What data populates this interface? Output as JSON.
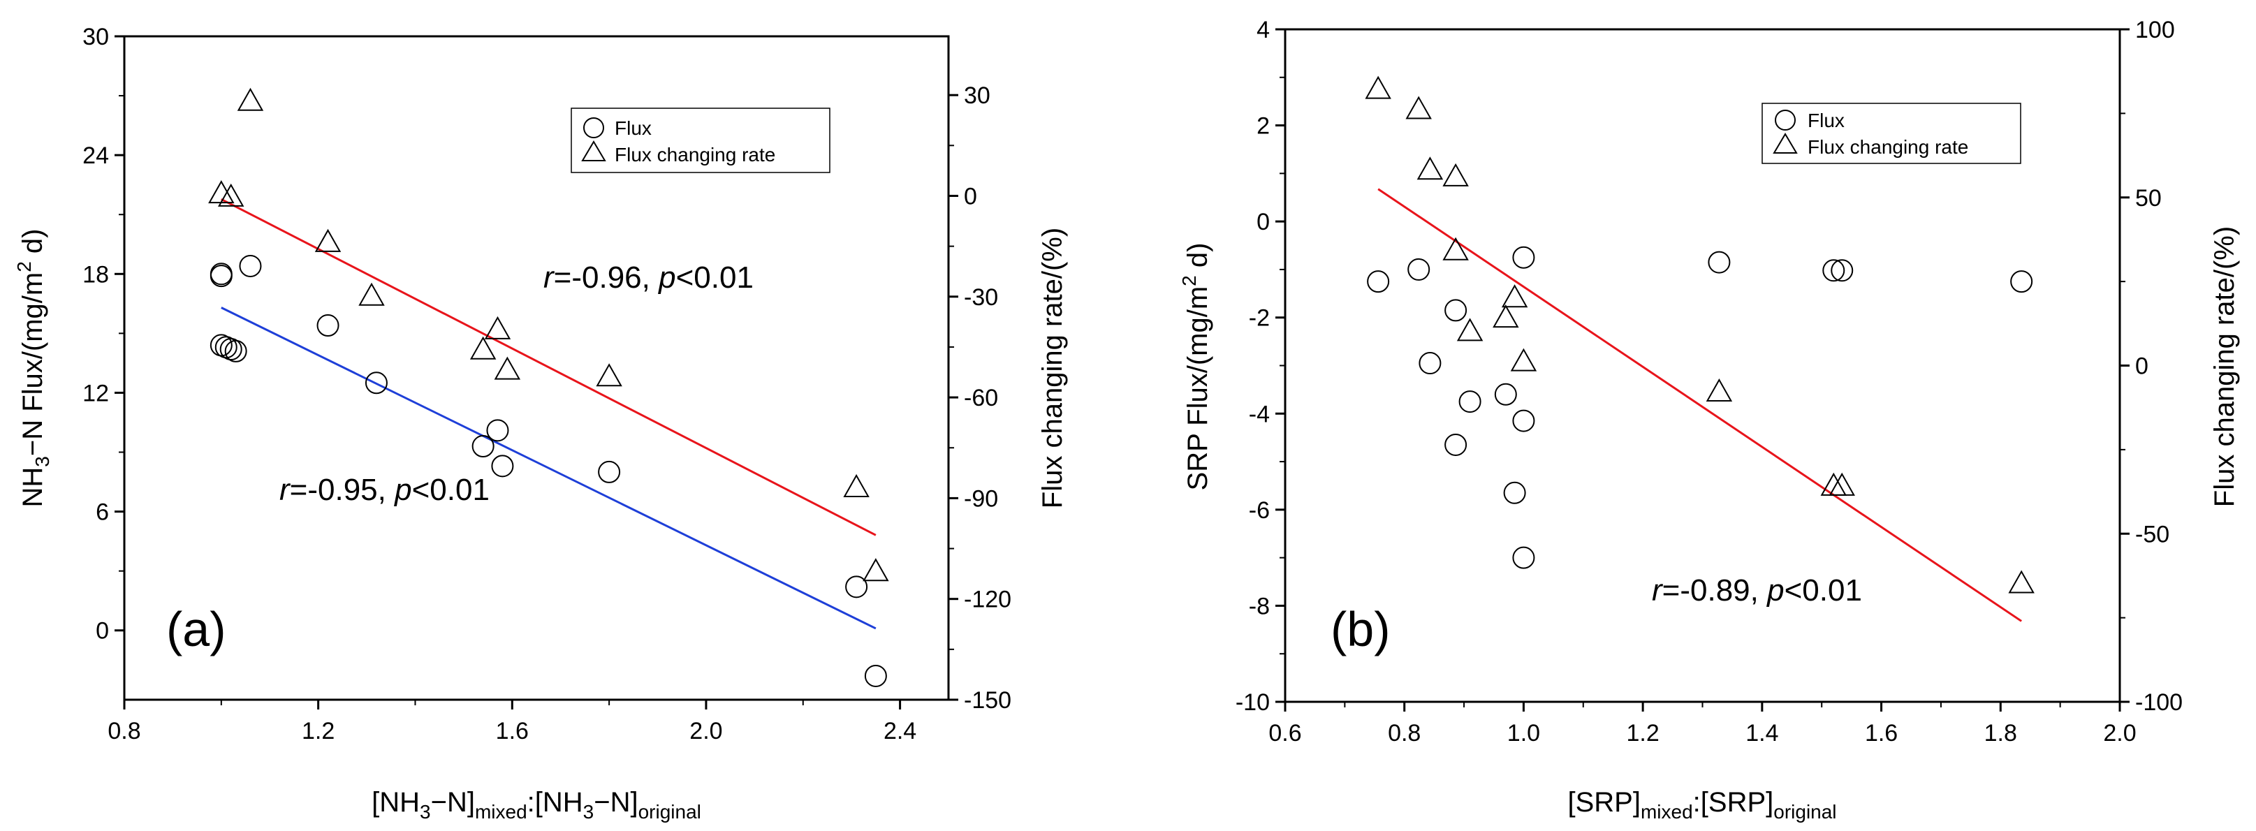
{
  "chart_data": [
    {
      "panel": "a",
      "type": "scatter",
      "panel_label": "(a)",
      "xlabel": {
        "pre": "[NH",
        "s1": "3",
        "mid1": "−N]",
        "s2": "mixed",
        "mid2": ":[NH",
        "s3": "3",
        "mid3": "−N]",
        "s4": "original"
      },
      "ylabel_left": {
        "pre": "NH",
        "s1": "3",
        "mid": "−N Flux/(mg/m",
        "s2": "2",
        "post": " d)"
      },
      "ylabel_right": "Flux changing rate/(%)",
      "xlim": [
        0.8,
        2.5
      ],
      "ylim_left": [
        -3.5,
        30
      ],
      "ylim_right": [
        -150,
        47.5
      ],
      "x_ticks": [
        0.8,
        1.2,
        1.6,
        2.0,
        2.4
      ],
      "x_tick_labels": [
        "0.8",
        "1.2",
        "1.6",
        "2.0",
        "2.4"
      ],
      "y_left_ticks": [
        0,
        6,
        12,
        18,
        24,
        30
      ],
      "y_left_tick_labels": [
        "0",
        "6",
        "12",
        "18",
        "24",
        "30"
      ],
      "y_right_ticks": [
        -150,
        -120,
        -90,
        -60,
        -30,
        0,
        30
      ],
      "y_right_tick_labels": [
        "-150",
        "-120",
        "-90",
        "-60",
        "-30",
        "0",
        "30"
      ],
      "legend": {
        "position": "top-right",
        "items": [
          "Flux",
          "Flux changing rate"
        ]
      },
      "series": [
        {
          "name": "Flux",
          "axis": "left",
          "marker": "circle",
          "points": [
            [
              1.0,
              18.0
            ],
            [
              1.0,
              17.9
            ],
            [
              1.0,
              14.4
            ],
            [
              1.01,
              14.3
            ],
            [
              1.02,
              14.2
            ],
            [
              1.03,
              14.1
            ],
            [
              1.06,
              18.4
            ],
            [
              1.22,
              15.4
            ],
            [
              1.32,
              12.5
            ],
            [
              1.54,
              9.3
            ],
            [
              1.57,
              10.1
            ],
            [
              1.58,
              8.3
            ],
            [
              1.8,
              8.0
            ],
            [
              2.31,
              2.2
            ],
            [
              2.35,
              -2.3
            ]
          ]
        },
        {
          "name": "Flux changing rate",
          "axis": "right",
          "marker": "triangle",
          "points": [
            [
              1.0,
              0.5
            ],
            [
              1.02,
              -0.5
            ],
            [
              1.06,
              28.0
            ],
            [
              1.22,
              -14.0
            ],
            [
              1.31,
              -30.0
            ],
            [
              1.54,
              -46.0
            ],
            [
              1.57,
              -40.0
            ],
            [
              1.59,
              -52.0
            ],
            [
              1.8,
              -54.0
            ],
            [
              2.31,
              -87.0
            ],
            [
              2.35,
              -112.0
            ]
          ]
        }
      ],
      "fits": [
        {
          "name": "Flux fit",
          "axis": "left",
          "color": "#1e3fd8",
          "x": [
            1.0,
            2.35
          ],
          "y": [
            16.3,
            0.1
          ]
        },
        {
          "name": "Flux changing rate fit",
          "axis": "right",
          "color": "#e8141b",
          "x": [
            1.0,
            2.35
          ],
          "y": [
            -1.0,
            -101.0
          ]
        }
      ],
      "annotations": [
        {
          "var": "r",
          "text": "=-0.96, ",
          "pvar": "p",
          "ptext": "<0.01"
        },
        {
          "var": "r",
          "text": "=-0.95, ",
          "pvar": "p",
          "ptext": "<0.01"
        }
      ]
    },
    {
      "panel": "b",
      "type": "scatter",
      "panel_label": "(b)",
      "xlabel": {
        "pre": "[SRP]",
        "s1": "mixed",
        "mid": ":[SRP]",
        "s2": "original"
      },
      "ylabel_left": {
        "pre": "SRP Flux/(mg/m",
        "s1": "2",
        "post": " d)"
      },
      "ylabel_right": "Flux changing rate/(%)",
      "xlim": [
        0.6,
        2.0
      ],
      "ylim_left": [
        -10,
        4
      ],
      "ylim_right": [
        -100,
        100
      ],
      "x_ticks": [
        0.6,
        0.8,
        1.0,
        1.2,
        1.4,
        1.6,
        1.8,
        2.0
      ],
      "x_tick_labels": [
        "0.6",
        "0.8",
        "1.0",
        "1.2",
        "1.4",
        "1.6",
        "1.8",
        "2.0"
      ],
      "y_left_ticks": [
        -10,
        -8,
        -6,
        -4,
        -2,
        0,
        2,
        4
      ],
      "y_left_tick_labels": [
        "-10",
        "-8",
        "-6",
        "-4",
        "-2",
        "0",
        "2",
        "4"
      ],
      "y_right_ticks": [
        -100,
        -50,
        0,
        50,
        100
      ],
      "y_right_tick_labels": [
        "-100",
        "-50",
        "0",
        "50",
        "100"
      ],
      "legend": {
        "position": "top-right",
        "items": [
          "Flux",
          "Flux changing rate"
        ]
      },
      "series": [
        {
          "name": "Flux",
          "axis": "left",
          "marker": "circle",
          "points": [
            [
              0.756,
              -1.25
            ],
            [
              0.824,
              -1.0
            ],
            [
              0.843,
              -2.95
            ],
            [
              0.886,
              -1.85
            ],
            [
              0.886,
              -4.65
            ],
            [
              0.91,
              -3.75
            ],
            [
              0.97,
              -3.6
            ],
            [
              0.985,
              -5.65
            ],
            [
              1.0,
              -0.75
            ],
            [
              1.0,
              -4.15
            ],
            [
              1.0,
              -7.0
            ],
            [
              1.328,
              -0.85
            ],
            [
              1.52,
              -1.02
            ],
            [
              1.534,
              -1.02
            ],
            [
              1.835,
              -1.25
            ]
          ]
        },
        {
          "name": "Flux changing rate",
          "axis": "right",
          "marker": "triangle",
          "points": [
            [
              0.756,
              82.0
            ],
            [
              0.824,
              76.0
            ],
            [
              0.843,
              58.0
            ],
            [
              0.886,
              56.0
            ],
            [
              0.886,
              34.0
            ],
            [
              0.91,
              10.0
            ],
            [
              0.97,
              14.0
            ],
            [
              0.985,
              20.0
            ],
            [
              1.0,
              1.0
            ],
            [
              1.328,
              -8.0
            ],
            [
              1.52,
              -36.0
            ],
            [
              1.534,
              -36.0
            ],
            [
              1.835,
              -65.0
            ]
          ]
        }
      ],
      "fits": [
        {
          "name": "Flux changing rate fit",
          "axis": "right",
          "color": "#e8141b",
          "x": [
            0.756,
            1.835
          ],
          "y": [
            52.5,
            -76.0
          ]
        }
      ],
      "annotations": [
        {
          "var": "r",
          "text": "=-0.89, ",
          "pvar": "p",
          "ptext": "<0.01"
        }
      ]
    }
  ]
}
